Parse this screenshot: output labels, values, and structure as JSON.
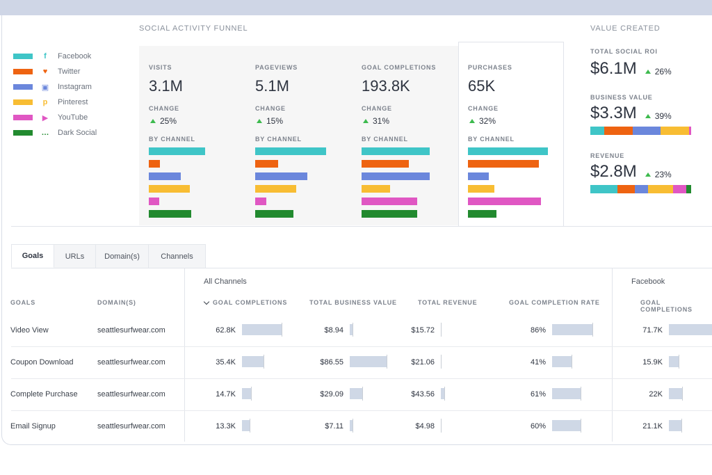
{
  "colors": {
    "facebook": "#3fc5c7",
    "twitter": "#ee6311",
    "instagram": "#6b87dc",
    "pinterest": "#f8bd33",
    "youtube": "#e057c3",
    "dark_social": "#228a2f",
    "positive": "#3dba4e",
    "bar_fill": "#cfd8e6"
  },
  "funnel": {
    "title": "SOCIAL ACTIVITY FUNNEL",
    "legend": [
      {
        "label": "Facebook",
        "icon": "facebook-icon",
        "glyph": "f"
      },
      {
        "label": "Twitter",
        "icon": "twitter-icon",
        "glyph": "♥"
      },
      {
        "label": "Instagram",
        "icon": "instagram-icon",
        "glyph": "▣"
      },
      {
        "label": "Pinterest",
        "icon": "pinterest-icon",
        "glyph": "p"
      },
      {
        "label": "YouTube",
        "icon": "youtube-icon",
        "glyph": "▶"
      },
      {
        "label": "Dark Social",
        "icon": "chat-icon",
        "glyph": "…"
      }
    ],
    "change_label": "CHANGE",
    "by_channel_label": "BY CHANNEL",
    "metrics": [
      {
        "label": "VISITS",
        "value": "3.1M",
        "change": "25%",
        "channel_share": [
          0.55,
          0.11,
          0.31,
          0.4,
          0.1,
          0.41
        ]
      },
      {
        "label": "PAGEVIEWS",
        "value": "5.1M",
        "change": "15%",
        "channel_share": [
          0.69,
          0.22,
          0.51,
          0.4,
          0.11,
          0.37
        ]
      },
      {
        "label": "GOAL COMPLETIONS",
        "value": "193.8K",
        "change": "31%",
        "channel_share": [
          0.66,
          0.46,
          0.66,
          0.28,
          0.54,
          0.54
        ]
      },
      {
        "label": "PURCHASES",
        "value": "65K",
        "change": "32%",
        "channel_share": [
          0.78,
          0.69,
          0.2,
          0.26,
          0.71,
          0.28
        ]
      }
    ]
  },
  "value_created": {
    "title": "VALUE CREATED",
    "total_roi": {
      "label": "TOTAL SOCIAL ROI",
      "value": "$6.1M",
      "change": "26%"
    },
    "business_value": {
      "label": "BUSINESS VALUE",
      "value": "$3.3M",
      "change": "39%",
      "segments": [
        0.14,
        0.28,
        0.28,
        0.28,
        0.02,
        0.0
      ]
    },
    "revenue": {
      "label": "REVENUE",
      "value": "$2.8M",
      "change": "23%",
      "segments": [
        0.27,
        0.17,
        0.13,
        0.25,
        0.13,
        0.05
      ]
    }
  },
  "tabs": [
    "Goals",
    "URLs",
    "Domain(s)",
    "Channels"
  ],
  "table": {
    "group_all": "All Channels",
    "group_facebook": "Facebook",
    "headers": {
      "goals": "GOALS",
      "domains": "DOMAIN(S)",
      "goal_completions": "GOAL COMPLETIONS",
      "total_business_value": "TOTAL BUSINESS VALUE",
      "total_revenue": "TOTAL REVENUE",
      "goal_completion_rate": "GOAL COMPLETION RATE",
      "fb_goal_completions": "GOAL COMPLETIONS"
    },
    "rows": [
      {
        "goal": "Video View",
        "domain": "seattlesurfwear.com",
        "completions": "62.8K",
        "completions_frac": 1.0,
        "business_value": "$8.94",
        "bv_frac": 0.08,
        "revenue": "$15.72",
        "rev_frac": 0.0,
        "rate": "86%",
        "rate_frac": 1.0,
        "fb_completions": "71.7K",
        "fb_frac": 1.0
      },
      {
        "goal": "Coupon Download",
        "domain": "seattlesurfwear.com",
        "completions": "35.4K",
        "completions_frac": 0.55,
        "business_value": "$86.55",
        "bv_frac": 1.0,
        "revenue": "$21.06",
        "rev_frac": 0.0,
        "rate": "41%",
        "rate_frac": 0.48,
        "fb_completions": "15.9K",
        "fb_frac": 0.22
      },
      {
        "goal": "Complete Purchase",
        "domain": "seattlesurfwear.com",
        "completions": "14.7K",
        "completions_frac": 0.23,
        "business_value": "$29.09",
        "bv_frac": 0.34,
        "revenue": "$43.56",
        "rev_frac": 0.1,
        "rate": "61%",
        "rate_frac": 0.71,
        "fb_completions": "22K",
        "fb_frac": 0.31
      },
      {
        "goal": "Email Signup",
        "domain": "seattlesurfwear.com",
        "completions": "13.3K",
        "completions_frac": 0.2,
        "business_value": "$7.11",
        "bv_frac": 0.08,
        "revenue": "$4.98",
        "rev_frac": 0.0,
        "rate": "60%",
        "rate_frac": 0.7,
        "fb_completions": "21.1K",
        "fb_frac": 0.29
      }
    ]
  }
}
